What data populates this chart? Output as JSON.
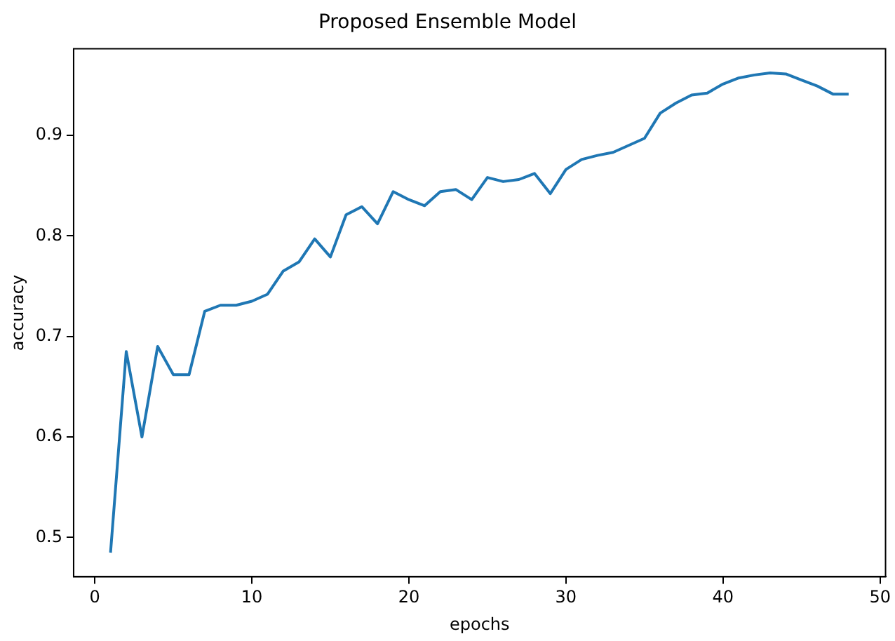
{
  "chart_data": {
    "type": "line",
    "title": "Proposed Ensemble Model",
    "xlabel": "epochs",
    "ylabel": "accuracy",
    "x": [
      1,
      2,
      3,
      4,
      5,
      6,
      7,
      8,
      9,
      10,
      11,
      12,
      13,
      14,
      15,
      16,
      17,
      18,
      19,
      20,
      21,
      22,
      23,
      24,
      25,
      26,
      27,
      28,
      29,
      30,
      31,
      32,
      33,
      34,
      35,
      36,
      37,
      38,
      39,
      40,
      41,
      42,
      43,
      44,
      45,
      46,
      47,
      48
    ],
    "series": [
      {
        "color": "#1f77b4",
        "values": [
          0.485,
          0.685,
          0.6,
          0.69,
          0.662,
          0.662,
          0.725,
          0.731,
          0.731,
          0.735,
          0.742,
          0.765,
          0.774,
          0.797,
          0.779,
          0.821,
          0.829,
          0.812,
          0.844,
          0.836,
          0.83,
          0.844,
          0.846,
          0.836,
          0.858,
          0.854,
          0.856,
          0.862,
          0.842,
          0.866,
          0.876,
          0.88,
          0.883,
          0.89,
          0.897,
          0.922,
          0.932,
          0.94,
          0.942,
          0.951,
          0.957,
          0.96,
          0.962,
          0.961,
          0.955,
          0.949,
          0.941,
          0.941
        ]
      }
    ],
    "xlim": [
      -1.35,
      50.35
    ],
    "xticks": [
      0,
      10,
      20,
      30,
      40,
      50
    ],
    "ylim": [
      0.461,
      0.986
    ],
    "yticks": [
      0.5,
      0.6,
      0.7,
      0.8,
      0.9
    ],
    "grid": false,
    "legend": false,
    "marker": "none",
    "line_style": "solid"
  }
}
